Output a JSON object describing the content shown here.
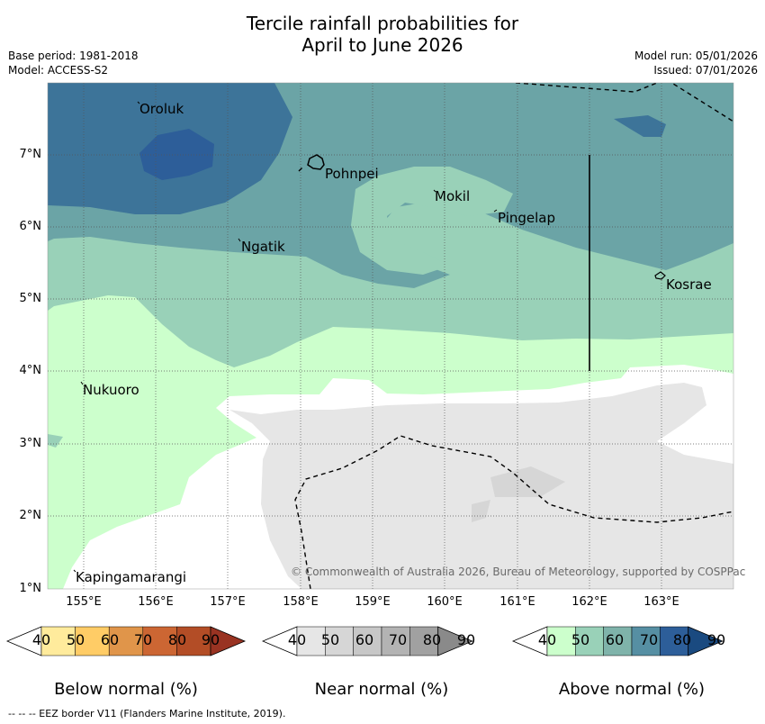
{
  "header": {
    "title_line1": "Tercile rainfall probabilities for",
    "title_line2": "April to June 2026",
    "base_period": "Base period: 1981-2018",
    "model": "Model: ACCESS-S2",
    "model_run": "Model run: 05/01/2026",
    "issued": "Issued: 07/01/2026"
  },
  "map": {
    "lat_labels": [
      "7°N",
      "6°N",
      "5°N",
      "4°N",
      "3°N",
      "2°N",
      "1°N"
    ],
    "lon_labels": [
      "155°E",
      "156°E",
      "157°E",
      "158°E",
      "159°E",
      "160°E",
      "161°E",
      "162°E",
      "163°E"
    ],
    "places": [
      {
        "name": "Oroluk"
      },
      {
        "name": "Pohnpei"
      },
      {
        "name": "Mokil"
      },
      {
        "name": "Pingelap"
      },
      {
        "name": "Ngatik"
      },
      {
        "name": "Kosrae"
      },
      {
        "name": "Nukuoro"
      },
      {
        "name": "Kapingamarangi"
      }
    ],
    "copyright": "© Commonwealth of Australia 2026, Bureau of Meteorology, supported by COSPPac",
    "colors": {
      "above_40_50": "#ccffcc",
      "above_50_60": "#99d1b8",
      "above_60_70": "#6ba4a6",
      "above_70_80": "#3d7499",
      "above_80_90": "#2d5e99",
      "near_40_50": "#e6e6e6"
    }
  },
  "legend": {
    "below": {
      "title": "Below normal (%)",
      "ticks": [
        "40",
        "50",
        "60",
        "70",
        "80",
        "90"
      ],
      "colors": [
        "#ffffff",
        "#ffeb9c",
        "#ffcc66",
        "#e0954a",
        "#cc6633",
        "#b34d26",
        "#993322"
      ]
    },
    "near": {
      "title": "Near normal (%)",
      "ticks": [
        "40",
        "50",
        "60",
        "70",
        "80",
        "90"
      ],
      "colors": [
        "#ffffff",
        "#e6e6e6",
        "#d6d6d6",
        "#c7c7c7",
        "#b3b3b3",
        "#a1a1a1",
        "#8a8a8a"
      ]
    },
    "above": {
      "title": "Above normal (%)",
      "ticks": [
        "40",
        "50",
        "60",
        "70",
        "80",
        "90"
      ],
      "colors": [
        "#ffffff",
        "#ccffcc",
        "#99d1b8",
        "#7fb3aa",
        "#568fa3",
        "#2d5e99",
        "#1a4a80"
      ]
    }
  },
  "footer": "--  --  -- EEZ border V11 (Flanders Marine Institute, 2019)."
}
